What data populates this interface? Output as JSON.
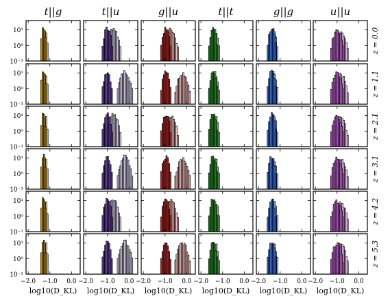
{
  "chart_data": {
    "type": "histogram-grid",
    "column_titles": [
      "t||g",
      "t||u",
      "g||u",
      "t||t",
      "g||g",
      "u||u"
    ],
    "row_labels": [
      "z = 0.0",
      "z = 1.1",
      "z = 2.1",
      "z = 3.1",
      "z = 4.2",
      "z = 5.3"
    ],
    "xlabel": "log10(D_KL)",
    "xlim": [
      -2.1,
      0.4
    ],
    "ylim_log": [
      0.1,
      40
    ],
    "y_scale": "log",
    "x_ticks": [
      "−2.0",
      "−1.0",
      "0.0"
    ],
    "y_ticks": [
      "10¹",
      "10⁰",
      "10⁻¹"
    ],
    "column_colors": {
      "t||g": [
        "#b8860b",
        "#d2b98a"
      ],
      "t||u": [
        "#5e3c99",
        "#cbbfe0"
      ],
      "g||u": [
        "#b22222",
        "#e8a7a7"
      ],
      "t||t": [
        "#228b22",
        "#8fd48f"
      ],
      "g||g": [
        "#3a6fe0",
        "#a9bff2"
      ],
      "u||u": [
        "#c060d0",
        "#e7b3ef"
      ]
    },
    "column_centers": {
      "t||g": [
        -1.3,
        -1.2
      ],
      "t||u": [
        -1.0,
        -0.2
      ],
      "g||u": [
        -0.95,
        -0.2
      ],
      "t||t": [
        -1.45,
        -1.35
      ],
      "g||g": [
        -1.4,
        -1.3
      ],
      "u||u": [
        -1.0,
        -0.85
      ]
    },
    "column_widths": {
      "t||g": [
        0.12,
        0.12
      ],
      "t||u": [
        0.25,
        0.35
      ],
      "g||u": [
        0.25,
        0.35
      ],
      "t||t": [
        0.2,
        0.2
      ],
      "g||g": [
        0.2,
        0.22
      ],
      "u||u": [
        0.3,
        0.35
      ]
    },
    "peak_heights": {
      "t||g": [
        20,
        12
      ],
      "t||u": [
        15,
        15
      ],
      "g||u": [
        15,
        12
      ],
      "t||t": [
        15,
        12
      ],
      "g||g": [
        15,
        12
      ],
      "u||u": [
        12,
        10
      ]
    }
  }
}
